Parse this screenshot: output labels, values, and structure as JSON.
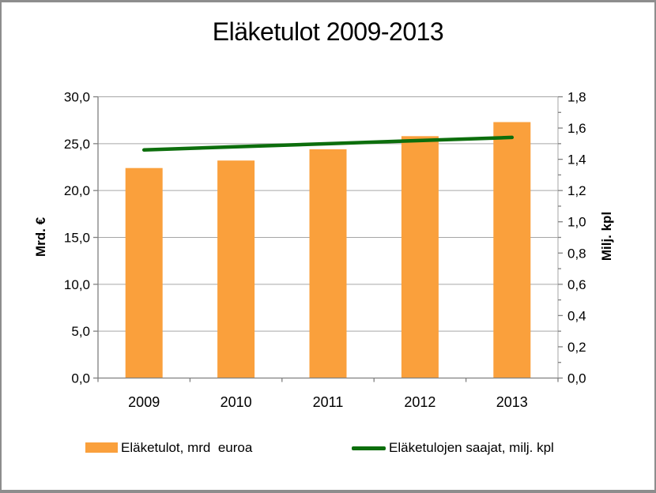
{
  "chart_data": {
    "type": "combo-bar-line",
    "title": "Eläketulot 2009-2013",
    "categories": [
      "2009",
      "2010",
      "2011",
      "2012",
      "2013"
    ],
    "series": [
      {
        "name": "Eläketulot, mrd  euroa",
        "type": "bar",
        "axis": "left",
        "color": "#FAA03C",
        "values": [
          22.4,
          23.2,
          24.4,
          25.8,
          27.3
        ]
      },
      {
        "name": "Eläketulojen saajat, milj. kpl",
        "type": "line",
        "axis": "right",
        "color": "#0C6E0C",
        "values": [
          1.46,
          1.48,
          1.5,
          1.52,
          1.54
        ]
      }
    ],
    "left_axis": {
      "label": "Mrd. €",
      "min": 0,
      "max": 30,
      "step": 5,
      "tick_labels": [
        "0,0",
        "5,0",
        "10,0",
        "15,0",
        "20,0",
        "25,0",
        "30,0"
      ]
    },
    "right_axis": {
      "label": "Milj. kpl",
      "min": 0,
      "max": 1.8,
      "step": 0.2,
      "minor_step": 0.1,
      "tick_labels": [
        "0,0",
        "0,2",
        "0,4",
        "0,6",
        "0,8",
        "1,0",
        "1,2",
        "1,4",
        "1,6",
        "1,8"
      ]
    },
    "grid": "horizontal",
    "legend_position": "bottom",
    "colors": {
      "gridline": "#A6A6A6",
      "plot_border": "#A6A6A6",
      "axis_line": "#808080",
      "tick": "#808080",
      "text": "#000000"
    }
  }
}
